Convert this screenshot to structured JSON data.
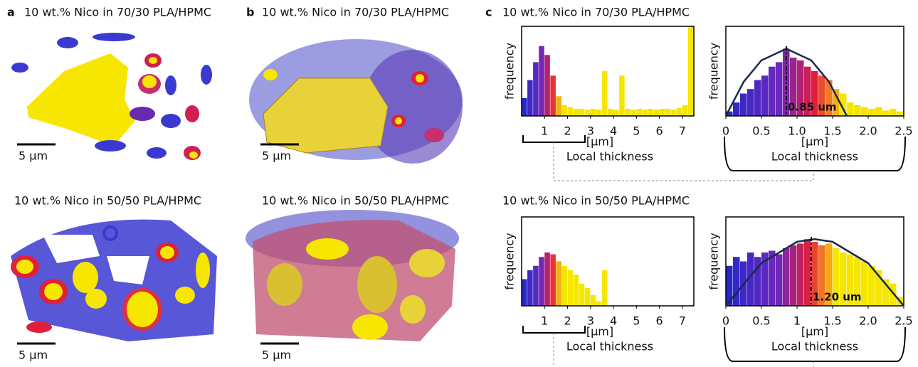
{
  "panels": [
    {
      "label": "a",
      "rows": [
        {
          "title": "10 wt.% Nico in 70/30 PLA/HPMC",
          "scale_bar": "5 µm"
        },
        {
          "title": "10 wt.% Nico in 50/50 PLA/HPMC",
          "scale_bar": "5 µm"
        }
      ]
    },
    {
      "label": "b",
      "rows": [
        {
          "title": "10 wt.% Nico in 70/30 PLA/HPMC",
          "scale_bar": "5 µm"
        },
        {
          "title": "10 wt.% Nico in 50/50 PLA/HPMC",
          "scale_bar": "5 µm"
        }
      ]
    },
    {
      "label": "c",
      "rows": [
        {
          "title": "10 wt.% Nico in 70/30 PLA/HPMC",
          "histograms": [
            {
              "ylabel": "frequency",
              "xunit": "[µm]",
              "xlabel": "Local thickness",
              "xlim": [
                0,
                7.5
              ],
              "ylim": [
                0,
                100
              ],
              "xticks": [
                1,
                2,
                3,
                4,
                5,
                6,
                7
              ],
              "bins": [
                0,
                0.25,
                0.5,
                0.75,
                1,
                1.25,
                1.5,
                1.75,
                2,
                2.25,
                2.5,
                2.75,
                3,
                3.25,
                3.5,
                3.75,
                4,
                4.25,
                4.5,
                4.75,
                5,
                5.25,
                5.5,
                5.75,
                6,
                6.25,
                6.5,
                6.75,
                7,
                7.25,
                7.5
              ],
              "counts": [
                20,
                40,
                60,
                78,
                68,
                45,
                22,
                12,
                10,
                8,
                8,
                7,
                8,
                7,
                50,
                8,
                7,
                45,
                8,
                7,
                8,
                7,
                8,
                7,
                8,
                8,
                7,
                9,
                12,
                100
              ]
            },
            {
              "ylabel": "frequency",
              "xunit": "[µm]",
              "xlabel": "Local thickness",
              "xlim": [
                0,
                2.5
              ],
              "ylim": [
                0,
                100
              ],
              "xticks": [
                0,
                0.5,
                {
                  "value": 1,
                  "label": "1.0"
                },
                1.5,
                {
                  "value": 2,
                  "label": "2.0"
                },
                2.5
              ],
              "bins": [
                0,
                0.1,
                0.2,
                0.3,
                0.4,
                0.5,
                0.6,
                0.7,
                0.8,
                0.9,
                1,
                1.1,
                1.2,
                1.3,
                1.4,
                1.5,
                1.6,
                1.7,
                1.8,
                1.9,
                2,
                2.1,
                2.2,
                2.3,
                2.4,
                2.5
              ],
              "counts": [
                5,
                15,
                25,
                30,
                40,
                45,
                55,
                60,
                75,
                65,
                62,
                55,
                50,
                45,
                40,
                30,
                25,
                15,
                12,
                10,
                8,
                10,
                6,
                8,
                5
              ],
              "fit": {
                "x": [
                  0,
                  0.25,
                  0.5,
                  0.85,
                  1.2,
                  1.45,
                  1.7
                ],
                "y": [
                  0,
                  38,
                  62,
                  75,
                  62,
                  38,
                  0
                ]
              },
              "peak": 0.85,
              "peak_label": "0.85 um"
            }
          ]
        },
        {
          "title": "10 wt.% Nico in 50/50 PLA/HPMC",
          "histograms": [
            {
              "ylabel": "frequency",
              "xunit": "[µm]",
              "xlabel": "Local thickness",
              "xlim": [
                0,
                7.5
              ],
              "ylim": [
                0,
                100
              ],
              "xticks": [
                1,
                2,
                3,
                4,
                5,
                6,
                7
              ],
              "bins": [
                0,
                0.25,
                0.5,
                0.75,
                1,
                1.25,
                1.5,
                1.75,
                2,
                2.25,
                2.5,
                2.75,
                3,
                3.25,
                3.5,
                3.75,
                4,
                4.25,
                4.5,
                4.75,
                5,
                5.25,
                5.5,
                5.75,
                6,
                6.25,
                6.5,
                6.75,
                7,
                7.25,
                7.5
              ],
              "counts": [
                30,
                40,
                45,
                55,
                60,
                58,
                50,
                45,
                40,
                35,
                25,
                20,
                12,
                5,
                40,
                0,
                0,
                0,
                0,
                0,
                0,
                0,
                0,
                0,
                0,
                0,
                0,
                0,
                0,
                0
              ]
            },
            {
              "ylabel": "frequency",
              "xunit": "[µm]",
              "xlabel": "Local thickness",
              "xlim": [
                0,
                2.5
              ],
              "ylim": [
                0,
                100
              ],
              "xticks": [
                0,
                0.5,
                1,
                1.5,
                {
                  "value": 2,
                  "label": "2.0"
                },
                2.5
              ],
              "bins": [
                0,
                0.1,
                0.2,
                0.3,
                0.4,
                0.5,
                0.6,
                0.7,
                0.8,
                0.9,
                1,
                1.1,
                1.2,
                1.3,
                1.4,
                1.5,
                1.6,
                1.7,
                1.8,
                1.9,
                2,
                2.1,
                2.2,
                2.3,
                2.4,
                2.5
              ],
              "counts": [
                45,
                55,
                50,
                60,
                55,
                60,
                62,
                58,
                65,
                68,
                70,
                75,
                72,
                68,
                70,
                65,
                60,
                58,
                55,
                50,
                45,
                40,
                30,
                25,
                10
              ],
              "fit": {
                "x": [
                  0,
                  0.5,
                  1,
                  1.25,
                  1.5,
                  2,
                  2.5
                ],
                "y": [
                  0,
                  48,
                  72,
                  75,
                  72,
                  48,
                  0
                ]
              },
              "peak": 1.2,
              "peak_label": "1.20 um"
            }
          ]
        }
      ]
    }
  ]
}
